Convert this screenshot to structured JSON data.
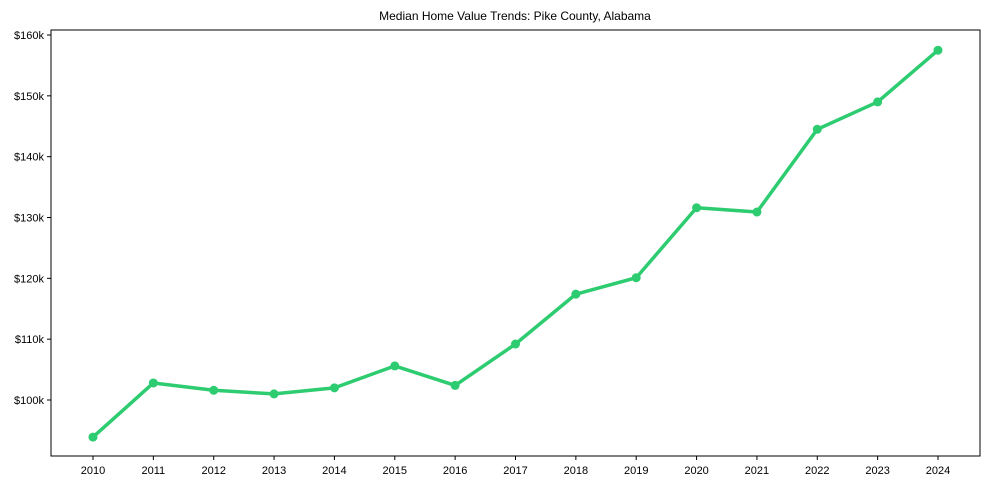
{
  "chart_data": {
    "type": "line",
    "title": "Median Home Value Trends: Pike County, Alabama",
    "xlabel": "",
    "ylabel": "",
    "categories": [
      "2010",
      "2011",
      "2012",
      "2013",
      "2014",
      "2015",
      "2016",
      "2017",
      "2018",
      "2019",
      "2020",
      "2021",
      "2022",
      "2023",
      "2024"
    ],
    "series": [
      {
        "name": "Median Home Value",
        "color": "#2ecc71",
        "values": [
          93.9,
          102.8,
          101.6,
          101.0,
          102.0,
          105.6,
          102.4,
          109.2,
          117.4,
          120.1,
          131.6,
          130.9,
          144.5,
          149.0,
          157.5
        ]
      }
    ],
    "value_unit": "thousands USD",
    "yticks": [
      100,
      110,
      120,
      130,
      140,
      150,
      160
    ],
    "ytick_labels": [
      "$100k",
      "$110k",
      "$120k",
      "$130k",
      "$140k",
      "$150k",
      "$160k"
    ],
    "ylim": [
      90.9,
      161.0
    ],
    "grid": false,
    "legend": "none",
    "markers": true
  }
}
